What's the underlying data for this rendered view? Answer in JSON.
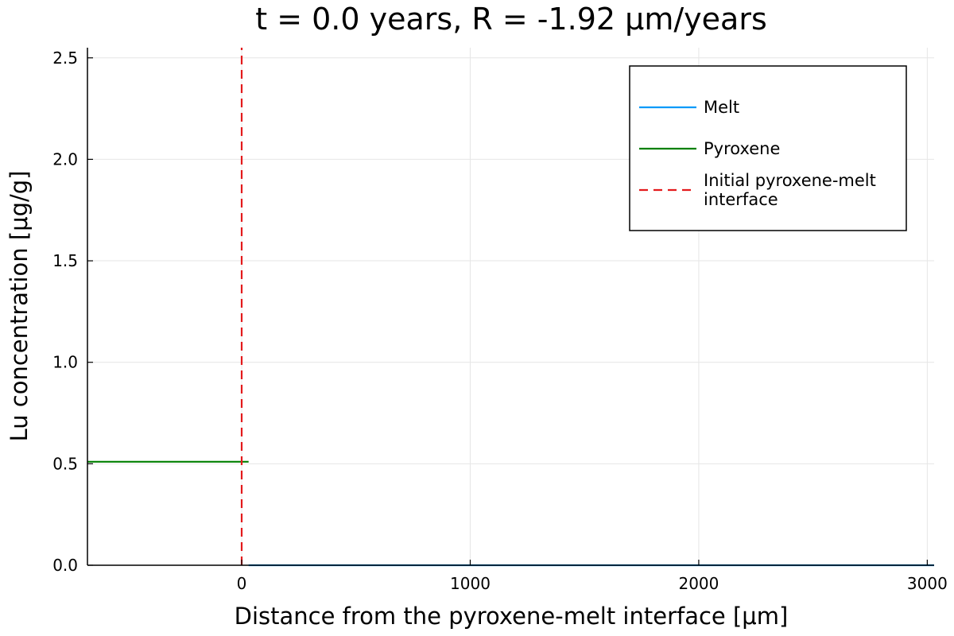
{
  "chart_data": {
    "type": "line",
    "title": "t = 0.0 years, R = -1.92 μm/years",
    "xlabel": "Distance from the pyroxene-melt interface [μm]",
    "ylabel": "Lu concentration [μg/g]",
    "xlim": [
      -675,
      3030
    ],
    "ylim": [
      0,
      2.55
    ],
    "xticks": [
      0,
      1000,
      2000,
      3000
    ],
    "xtick_labels": [
      "0",
      "1000",
      "2000",
      "3000"
    ],
    "yticks": [
      0.0,
      0.5,
      1.0,
      1.5,
      2.0,
      2.5
    ],
    "ytick_labels": [
      "0.0",
      "0.5",
      "1.0",
      "1.5",
      "2.0",
      "2.5"
    ],
    "grid": true,
    "legend_position": "top-right",
    "series": [
      {
        "name": "Melt",
        "color": "#009af9",
        "style": "solid",
        "x": [
          30,
          3030
        ],
        "y": [
          0.0,
          0.0
        ]
      },
      {
        "name": "Pyroxene",
        "color": "#008000",
        "style": "solid",
        "x": [
          -675,
          30
        ],
        "y": [
          0.51,
          0.51
        ]
      },
      {
        "name": "Initial pyroxene-melt interface",
        "color": "#e31a1c",
        "style": "dashed",
        "x": [
          0,
          0
        ],
        "y": [
          0,
          2.55
        ]
      }
    ],
    "legend_label_lines": [
      [
        "Melt"
      ],
      [
        "Pyroxene"
      ],
      [
        "Initial pyroxene-melt",
        "interface"
      ]
    ]
  }
}
